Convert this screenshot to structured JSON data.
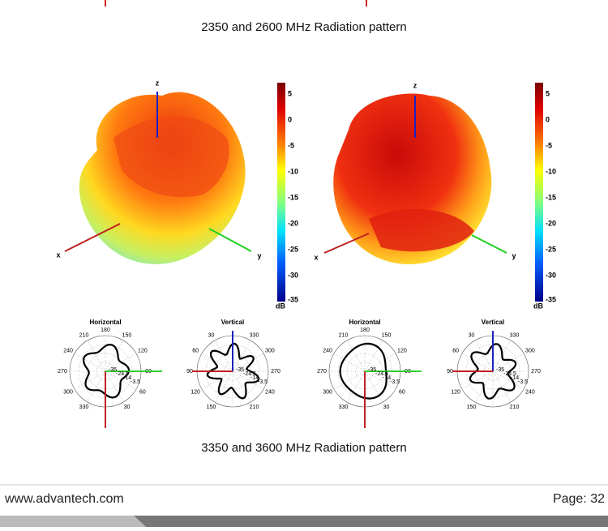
{
  "header_caption": "2350 and 2600 MHz Radiation pattern",
  "patterns": [
    {
      "axes": {
        "x": "x",
        "y": "y",
        "z": "z"
      },
      "colorbar": {
        "ticks": [
          "5",
          "0",
          "-5",
          "-10",
          "-15",
          "-20",
          "-25",
          "-30",
          "-35"
        ],
        "unit": "dB"
      }
    },
    {
      "axes": {
        "x": "x",
        "y": "y",
        "z": "z"
      },
      "colorbar": {
        "ticks": [
          "5",
          "0",
          "-5",
          "-10",
          "-15",
          "-20",
          "-25",
          "-30",
          "-35"
        ],
        "unit": "dB"
      }
    }
  ],
  "polar_plots": [
    {
      "title": "Horizontal",
      "angle_labels": [
        "180",
        "150",
        "120",
        "90",
        "60",
        "30",
        "330",
        "300",
        "270",
        "240",
        "210"
      ],
      "radial_labels": [
        "-35",
        "-24.5",
        "-14",
        "-3.5"
      ]
    },
    {
      "title": "Vertical",
      "angle_labels": [
        "330",
        "300",
        "270",
        "240",
        "210",
        "150",
        "120",
        "90",
        "60",
        "30"
      ],
      "radial_labels": [
        "-35",
        "-24.5",
        "-14",
        "-3.5"
      ]
    },
    {
      "title": "Horizontal",
      "angle_labels": [
        "180",
        "150",
        "120",
        "90",
        "60",
        "30",
        "330",
        "300",
        "270",
        "240",
        "210"
      ],
      "radial_labels": [
        "-35",
        "-24.5",
        "-14",
        "-3.5"
      ]
    },
    {
      "title": "Vertical",
      "angle_labels": [
        "330",
        "300",
        "270",
        "240",
        "210",
        "150",
        "120",
        "90",
        "60",
        "30"
      ],
      "radial_labels": [
        "-35",
        "-24.5",
        "-14",
        "-3.5"
      ]
    }
  ],
  "footer_caption": "3350 and 3600 MHz Radiation pattern",
  "footer": {
    "url": "www.advantech.com",
    "page": "Page: 32"
  }
}
